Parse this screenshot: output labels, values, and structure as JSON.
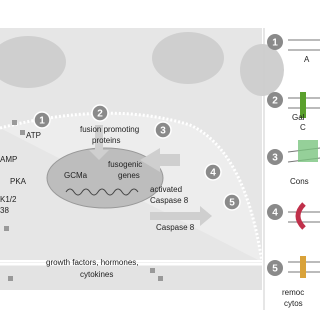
{
  "left_panel": {
    "steps": [
      "1",
      "2",
      "3",
      "4",
      "5"
    ],
    "labels": {
      "atp": "ATP",
      "fusion": [
        "fusion promoting",
        "proteins"
      ],
      "camp": "AMP",
      "pka": "PKA",
      "erk": [
        "K1/2",
        "38"
      ],
      "gcma": "GCMa",
      "fusogenic": [
        "fusogenic",
        "genes"
      ],
      "activated_caspase": [
        "activated",
        "Caspase 8"
      ],
      "caspase": "Caspase 8",
      "growth": [
        "growth factors, hormones,",
        "cytokines"
      ]
    }
  },
  "right_panel": {
    "steps": [
      "1",
      "2",
      "3",
      "4",
      "5"
    ],
    "labels": [
      "A",
      "Gal",
      "C",
      "Cons",
      "remoc",
      "cytos"
    ]
  }
}
